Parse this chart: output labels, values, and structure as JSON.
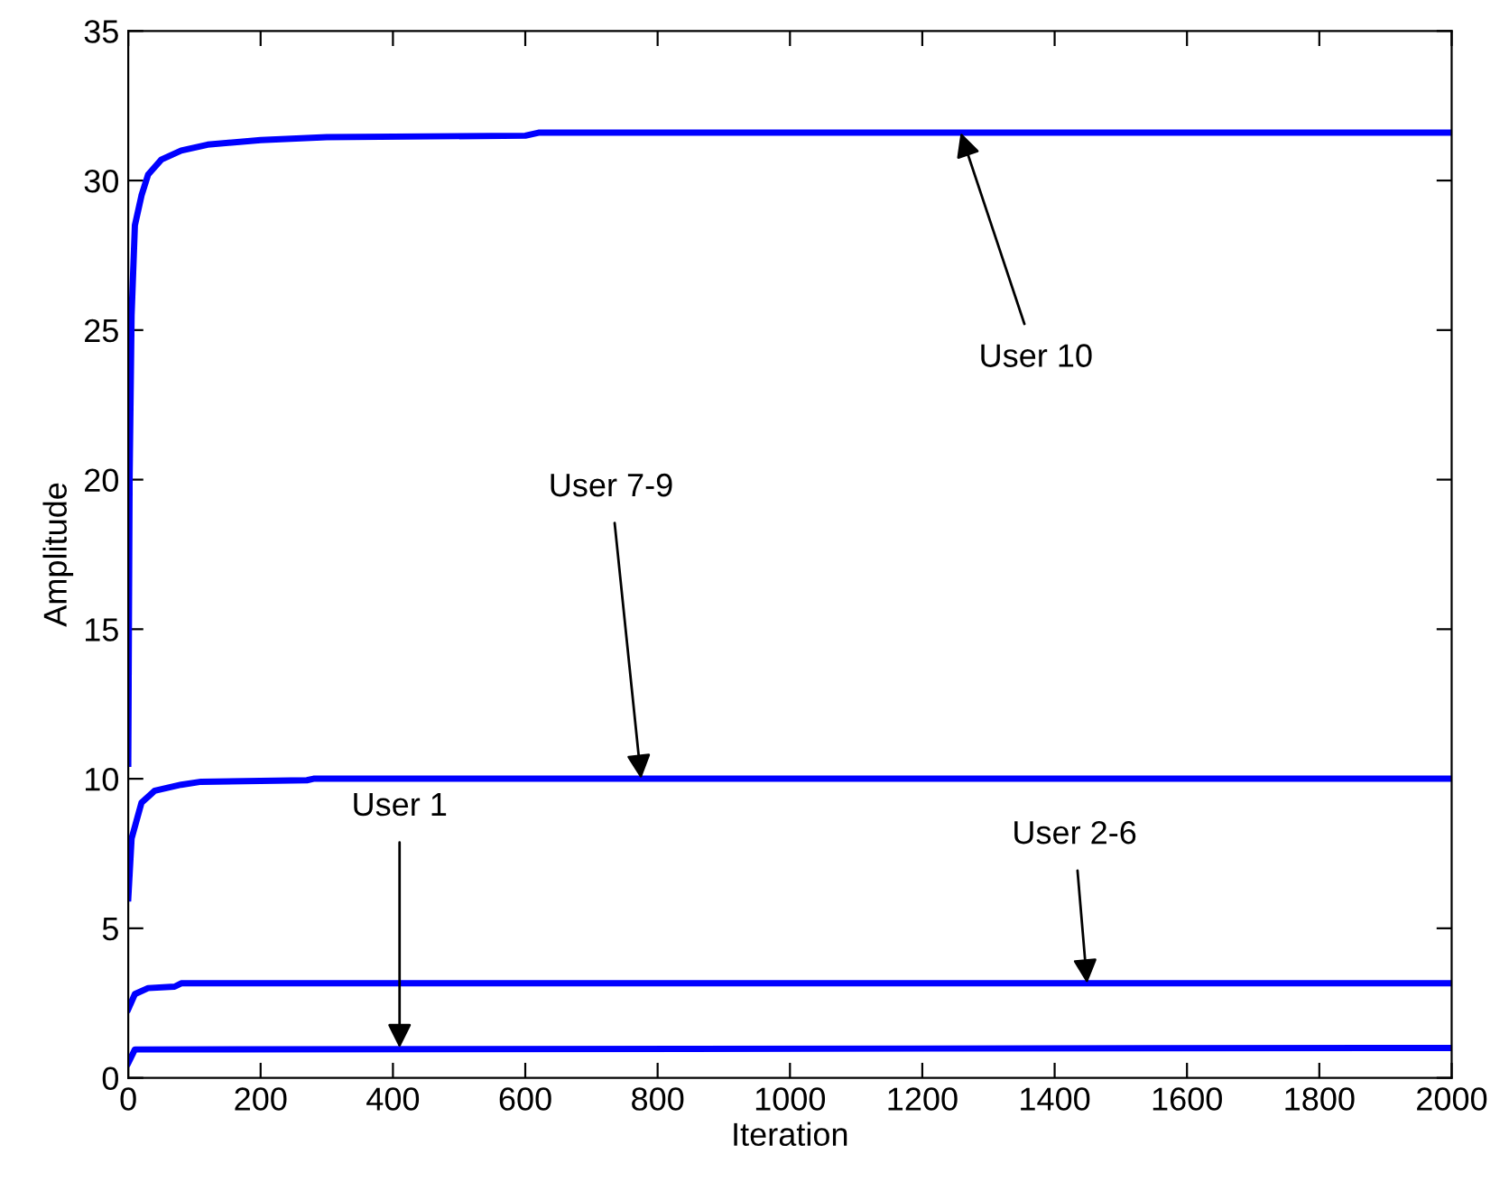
{
  "chart_data": {
    "type": "line",
    "xlabel": "Iteration",
    "ylabel": "Amplitude",
    "xlim": [
      0,
      2000
    ],
    "xticks": [
      0,
      200,
      400,
      600,
      800,
      1000,
      1200,
      1400,
      1600,
      1800,
      2000
    ],
    "ylim": [
      0,
      35
    ],
    "yticks": [
      0,
      5,
      10,
      15,
      20,
      25,
      30,
      35
    ],
    "grid": false,
    "legend": false,
    "marker": "none",
    "line_style": "solid",
    "series": [
      {
        "color": "#0000ff",
        "x": [
          0,
          2,
          5,
          10,
          20,
          30,
          50,
          80,
          120,
          200,
          300,
          600,
          620,
          2000
        ],
        "values": [
          10.5,
          20,
          25.5,
          28.5,
          29.5,
          30.2,
          30.7,
          31.0,
          31.2,
          31.35,
          31.45,
          31.5,
          31.6,
          31.6
        ]
      },
      {
        "color": "#0000ff",
        "x": [
          0,
          5,
          20,
          40,
          80,
          110,
          270,
          280,
          2000
        ],
        "values": [
          6,
          8,
          9.2,
          9.6,
          9.8,
          9.9,
          9.95,
          10,
          10
        ]
      },
      {
        "color": "#0000ff",
        "x": [
          0,
          10,
          30,
          70,
          80,
          2000
        ],
        "values": [
          2.3,
          2.8,
          3.0,
          3.05,
          3.16,
          3.16
        ]
      },
      {
        "color": "#0000ff",
        "x": [
          0,
          10,
          2000
        ],
        "values": [
          0.5,
          0.95,
          1.0
        ]
      }
    ],
    "annotations": [
      {
        "text": "User 10",
        "x": 1258,
        "y": 31.6
      },
      {
        "text": "User 7-9",
        "x": 775,
        "y": 10
      },
      {
        "text": "User 1",
        "x": 410,
        "y": 1
      },
      {
        "text": "User 2-6",
        "x": 1449,
        "y": 3.16
      }
    ]
  }
}
